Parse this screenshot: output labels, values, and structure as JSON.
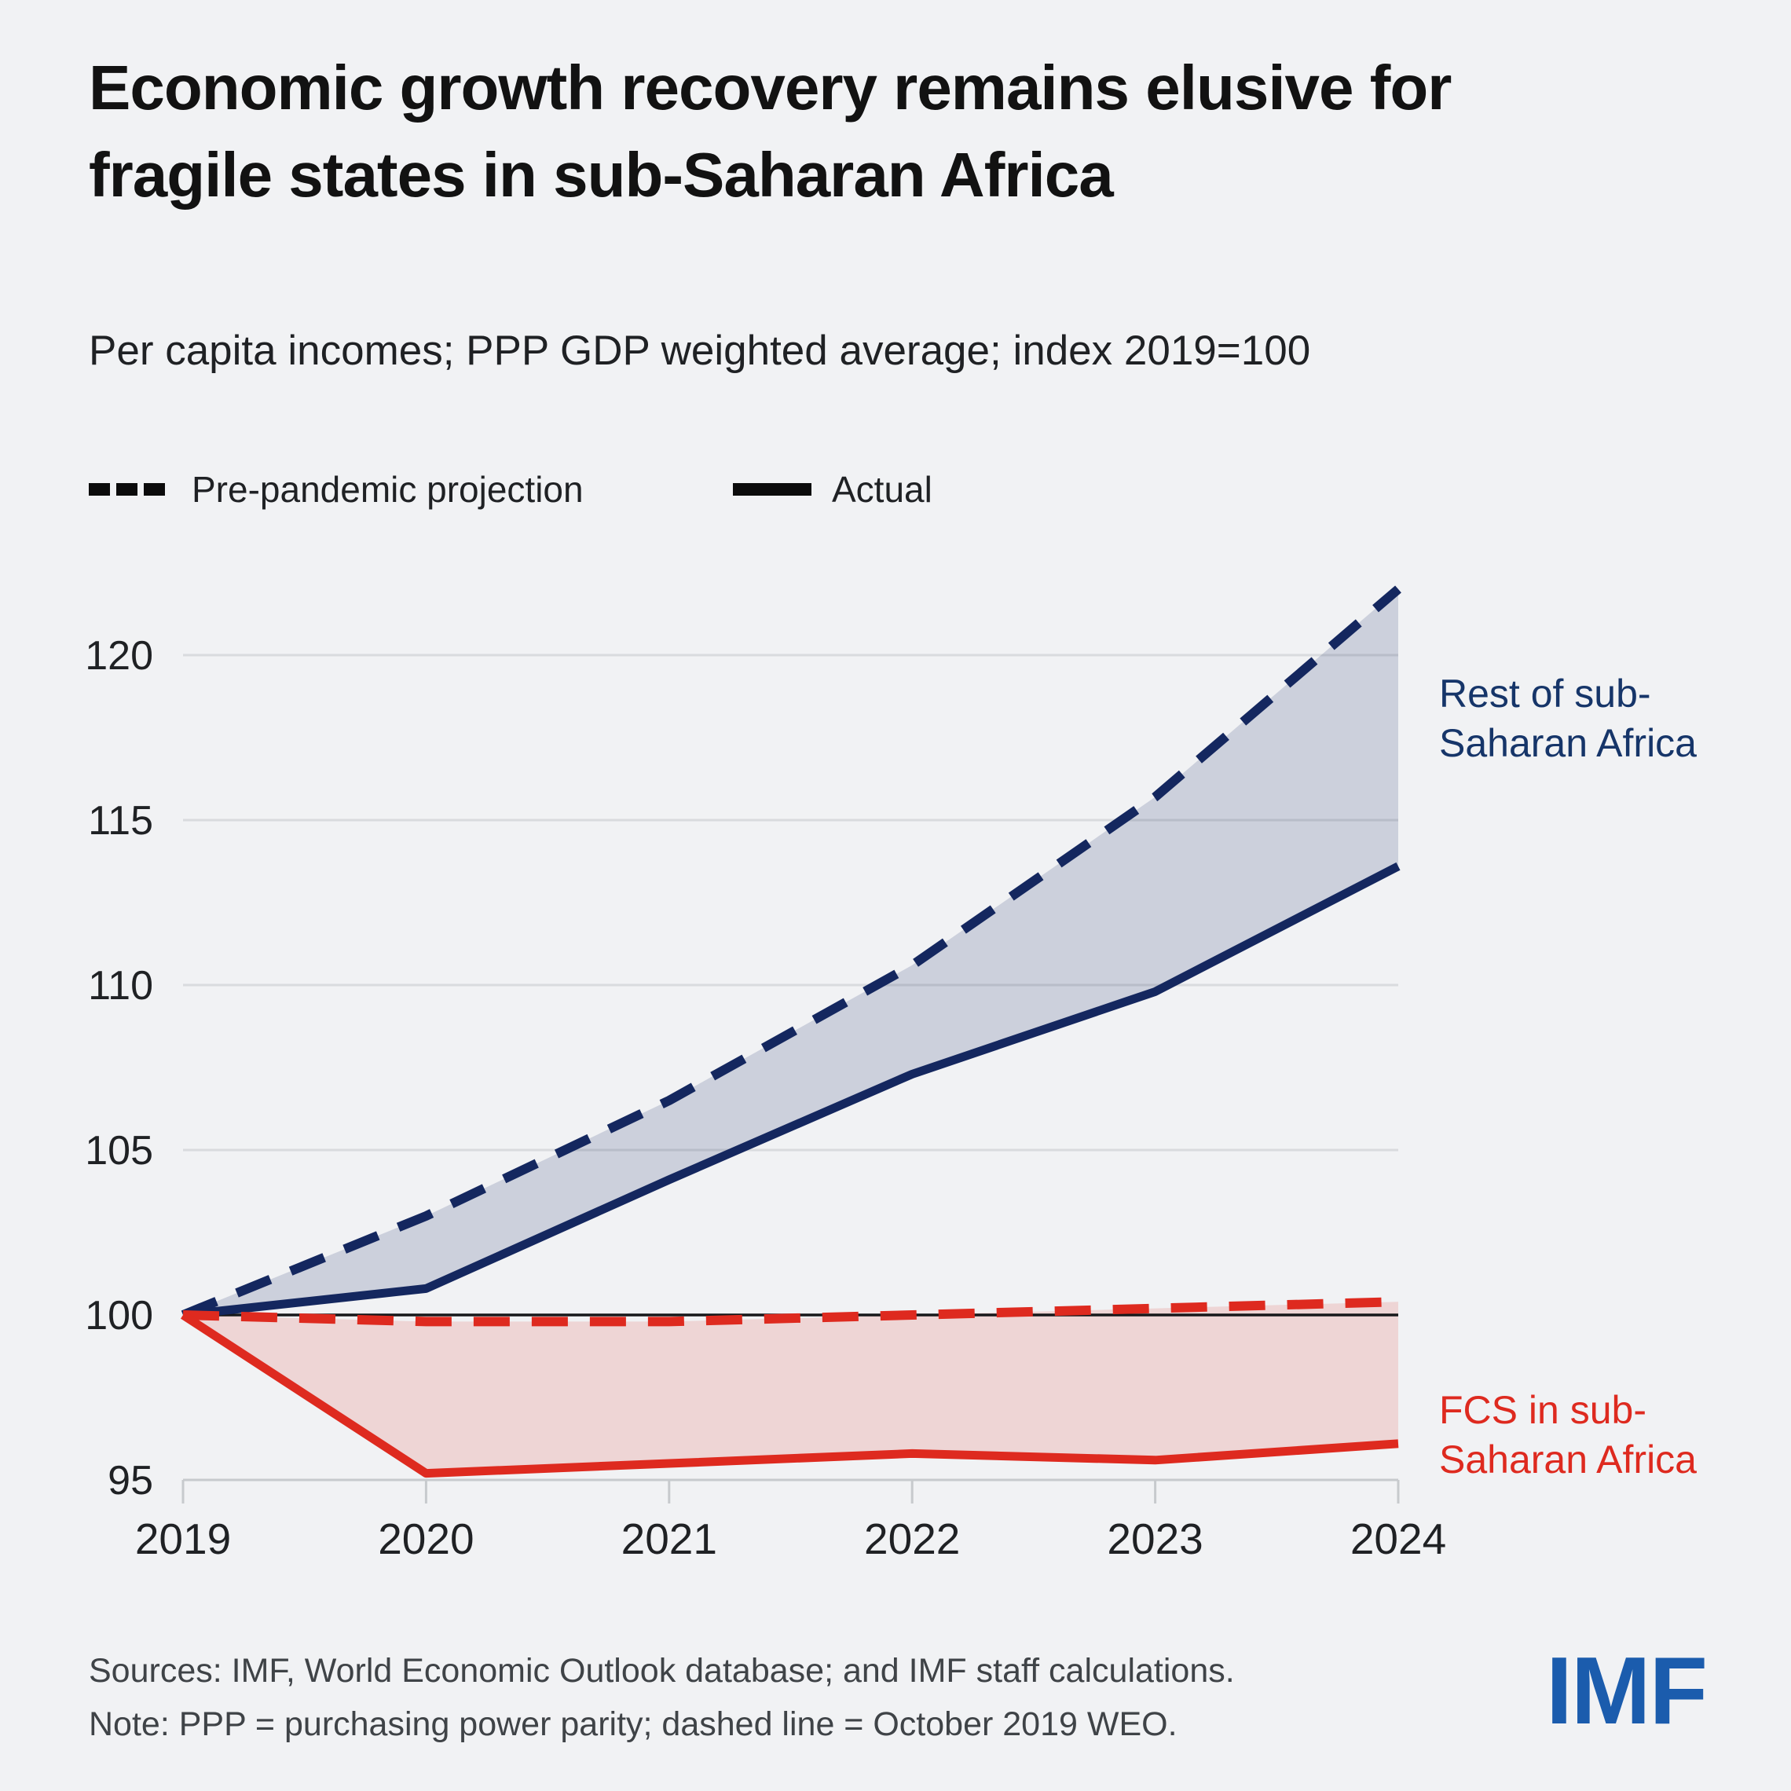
{
  "title": "Economic growth recovery remains elusive for fragile states in sub-Saharan Africa",
  "subtitle": "Per capita incomes; PPP GDP weighted average; index 2019=100",
  "legend": {
    "projection": "Pre-pandemic projection",
    "actual": "Actual"
  },
  "annotations": {
    "rest_label_lines": [
      "Rest of sub-",
      "Saharan Africa"
    ],
    "fcs_label_lines": [
      "FCS in sub-",
      "Saharan Africa"
    ]
  },
  "footer": {
    "sources": "Sources: IMF, World Economic Outlook database; and IMF staff calculations.",
    "note": "Note: PPP = purchasing power parity; dashed line = October 2019 WEO.",
    "logo": "IMF"
  },
  "colors": {
    "background": "#f1f2f4",
    "title_text": "#121212",
    "body_text": "#1f2124",
    "muted_text": "#3f4347",
    "navy": "#14275f",
    "navy_label": "#163569",
    "red": "#de2a1f",
    "blue_fill": "rgba(21,42,100,0.17)",
    "red_fill": "rgba(222,42,31,0.14)",
    "gridline": "#d9dbde",
    "axis": "#c7cacd",
    "reference_line": "#17181a",
    "legend_swatch": "#0b0b0b",
    "logo_blue": "#1b5cad"
  },
  "chart_data": {
    "type": "line",
    "title": "Per capita incomes; PPP GDP weighted average; index 2019=100",
    "x": [
      2019,
      2020,
      2021,
      2022,
      2023,
      2024
    ],
    "series": [
      {
        "name": "Rest of sub-Saharan Africa — Pre-pandemic projection",
        "style": "dashed",
        "color_key": "navy",
        "values": [
          100,
          103,
          106.5,
          110.6,
          115.7,
          122
        ]
      },
      {
        "name": "Rest of sub-Saharan Africa — Actual",
        "style": "solid",
        "color_key": "navy",
        "values": [
          100,
          100.8,
          104.1,
          107.3,
          109.8,
          113.6
        ]
      },
      {
        "name": "FCS in sub-Saharan Africa — Pre-pandemic projection",
        "style": "dashed",
        "color_key": "red",
        "values": [
          100,
          99.8,
          99.8,
          100,
          100.2,
          100.4
        ]
      },
      {
        "name": "FCS in sub-Saharan Africa — Actual",
        "style": "solid",
        "color_key": "red",
        "values": [
          100,
          95.2,
          95.5,
          95.8,
          95.6,
          96.1
        ]
      }
    ],
    "bands": [
      {
        "upper": 0,
        "lower": 1,
        "fill_key": "blue_fill"
      },
      {
        "upper": 2,
        "lower": 3,
        "fill_key": "red_fill"
      }
    ],
    "y_ticks": [
      95,
      100,
      105,
      110,
      115,
      120
    ],
    "ylim": [
      95,
      122
    ],
    "reference_line_y": 100,
    "grid": true,
    "legend_position": "top-left",
    "xlabel": "",
    "ylabel": ""
  }
}
